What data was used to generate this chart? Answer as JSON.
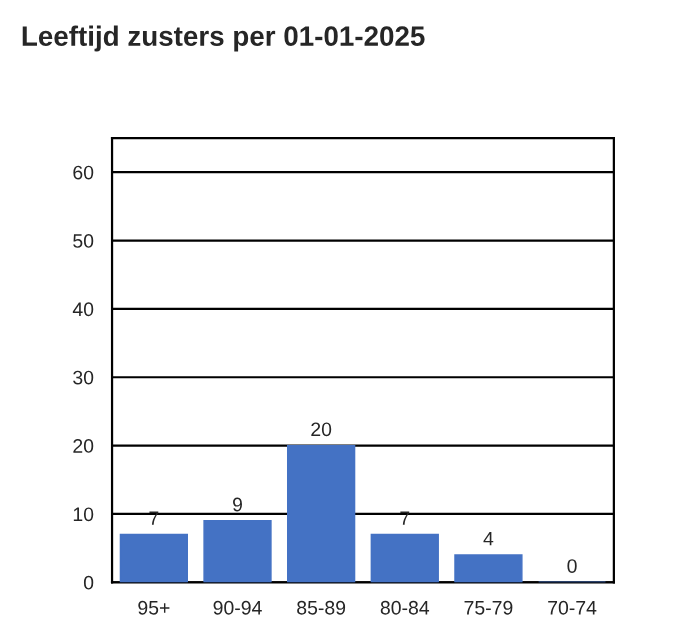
{
  "chart_data": {
    "type": "bar",
    "title": "Leeftijd zusters per 01-01-2025",
    "categories": [
      "95+",
      "90-94",
      "85-89",
      "80-84",
      "75-79",
      "70-74"
    ],
    "values": [
      7,
      9,
      20,
      7,
      4,
      0
    ],
    "color": "#4472c4",
    "ylim": [
      0,
      65
    ],
    "yticks": [
      0,
      10,
      20,
      30,
      40,
      50,
      60
    ],
    "grid": "y",
    "data_labels": true,
    "legend": false
  }
}
